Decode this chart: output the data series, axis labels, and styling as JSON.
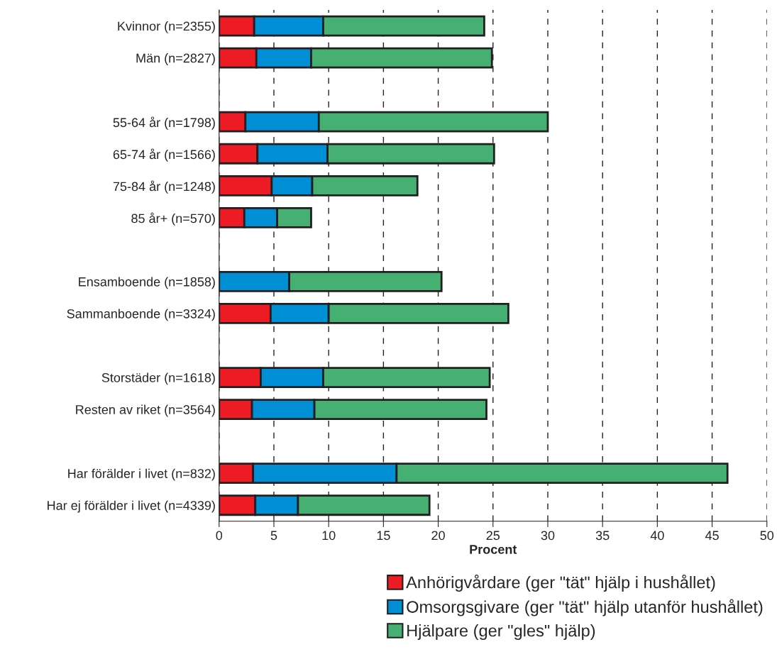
{
  "chart_data": {
    "type": "bar",
    "orientation": "horizontal",
    "stacked": true,
    "xlabel": "Procent",
    "categories": [
      "Kvinnor (n=2355)",
      "Män (n=2827)",
      null,
      "55-64 år (n=1798)",
      "65-74 år (n=1566)",
      "75-84 år (n=1248)",
      "85 år+ (n=570)",
      null,
      "Ensamboende (n=1858)",
      "Sammanboende (n=3324)",
      null,
      "Storstäder (n=1618)",
      "Resten av riket (n=3564)",
      null,
      "Har förälder i livet (n=832)",
      "Har ej förälder i livet (n=4339)"
    ],
    "series": [
      {
        "name": "Anhörigvårdare (ger \"tät\" hjälp i hushållet)",
        "color": "#ed1c24",
        "values": [
          3.2,
          3.4,
          null,
          2.4,
          3.5,
          4.8,
          2.3,
          null,
          0,
          4.7,
          null,
          3.8,
          3.0,
          null,
          3.1,
          3.3
        ]
      },
      {
        "name": "Omsorgsgivare (ger \"tät\" hjälp utanför hushållet)",
        "color": "#008fd5",
        "values": [
          6.3,
          5.0,
          null,
          6.7,
          6.4,
          3.7,
          3.0,
          null,
          6.4,
          5.3,
          null,
          5.7,
          5.7,
          null,
          13.1,
          3.9
        ]
      },
      {
        "name": "Hjälpare (ger \"gles\" hjälp)",
        "color": "#45b072",
        "values": [
          14.7,
          16.5,
          null,
          20.9,
          15.2,
          9.6,
          3.1,
          null,
          13.9,
          16.4,
          null,
          15.2,
          15.7,
          null,
          30.2,
          12.0
        ]
      }
    ],
    "xlim": [
      0,
      50
    ],
    "xticks": [
      0,
      5,
      10,
      15,
      20,
      25,
      30,
      35,
      40,
      45,
      50
    ],
    "grid": "x",
    "legend": "bottom"
  }
}
